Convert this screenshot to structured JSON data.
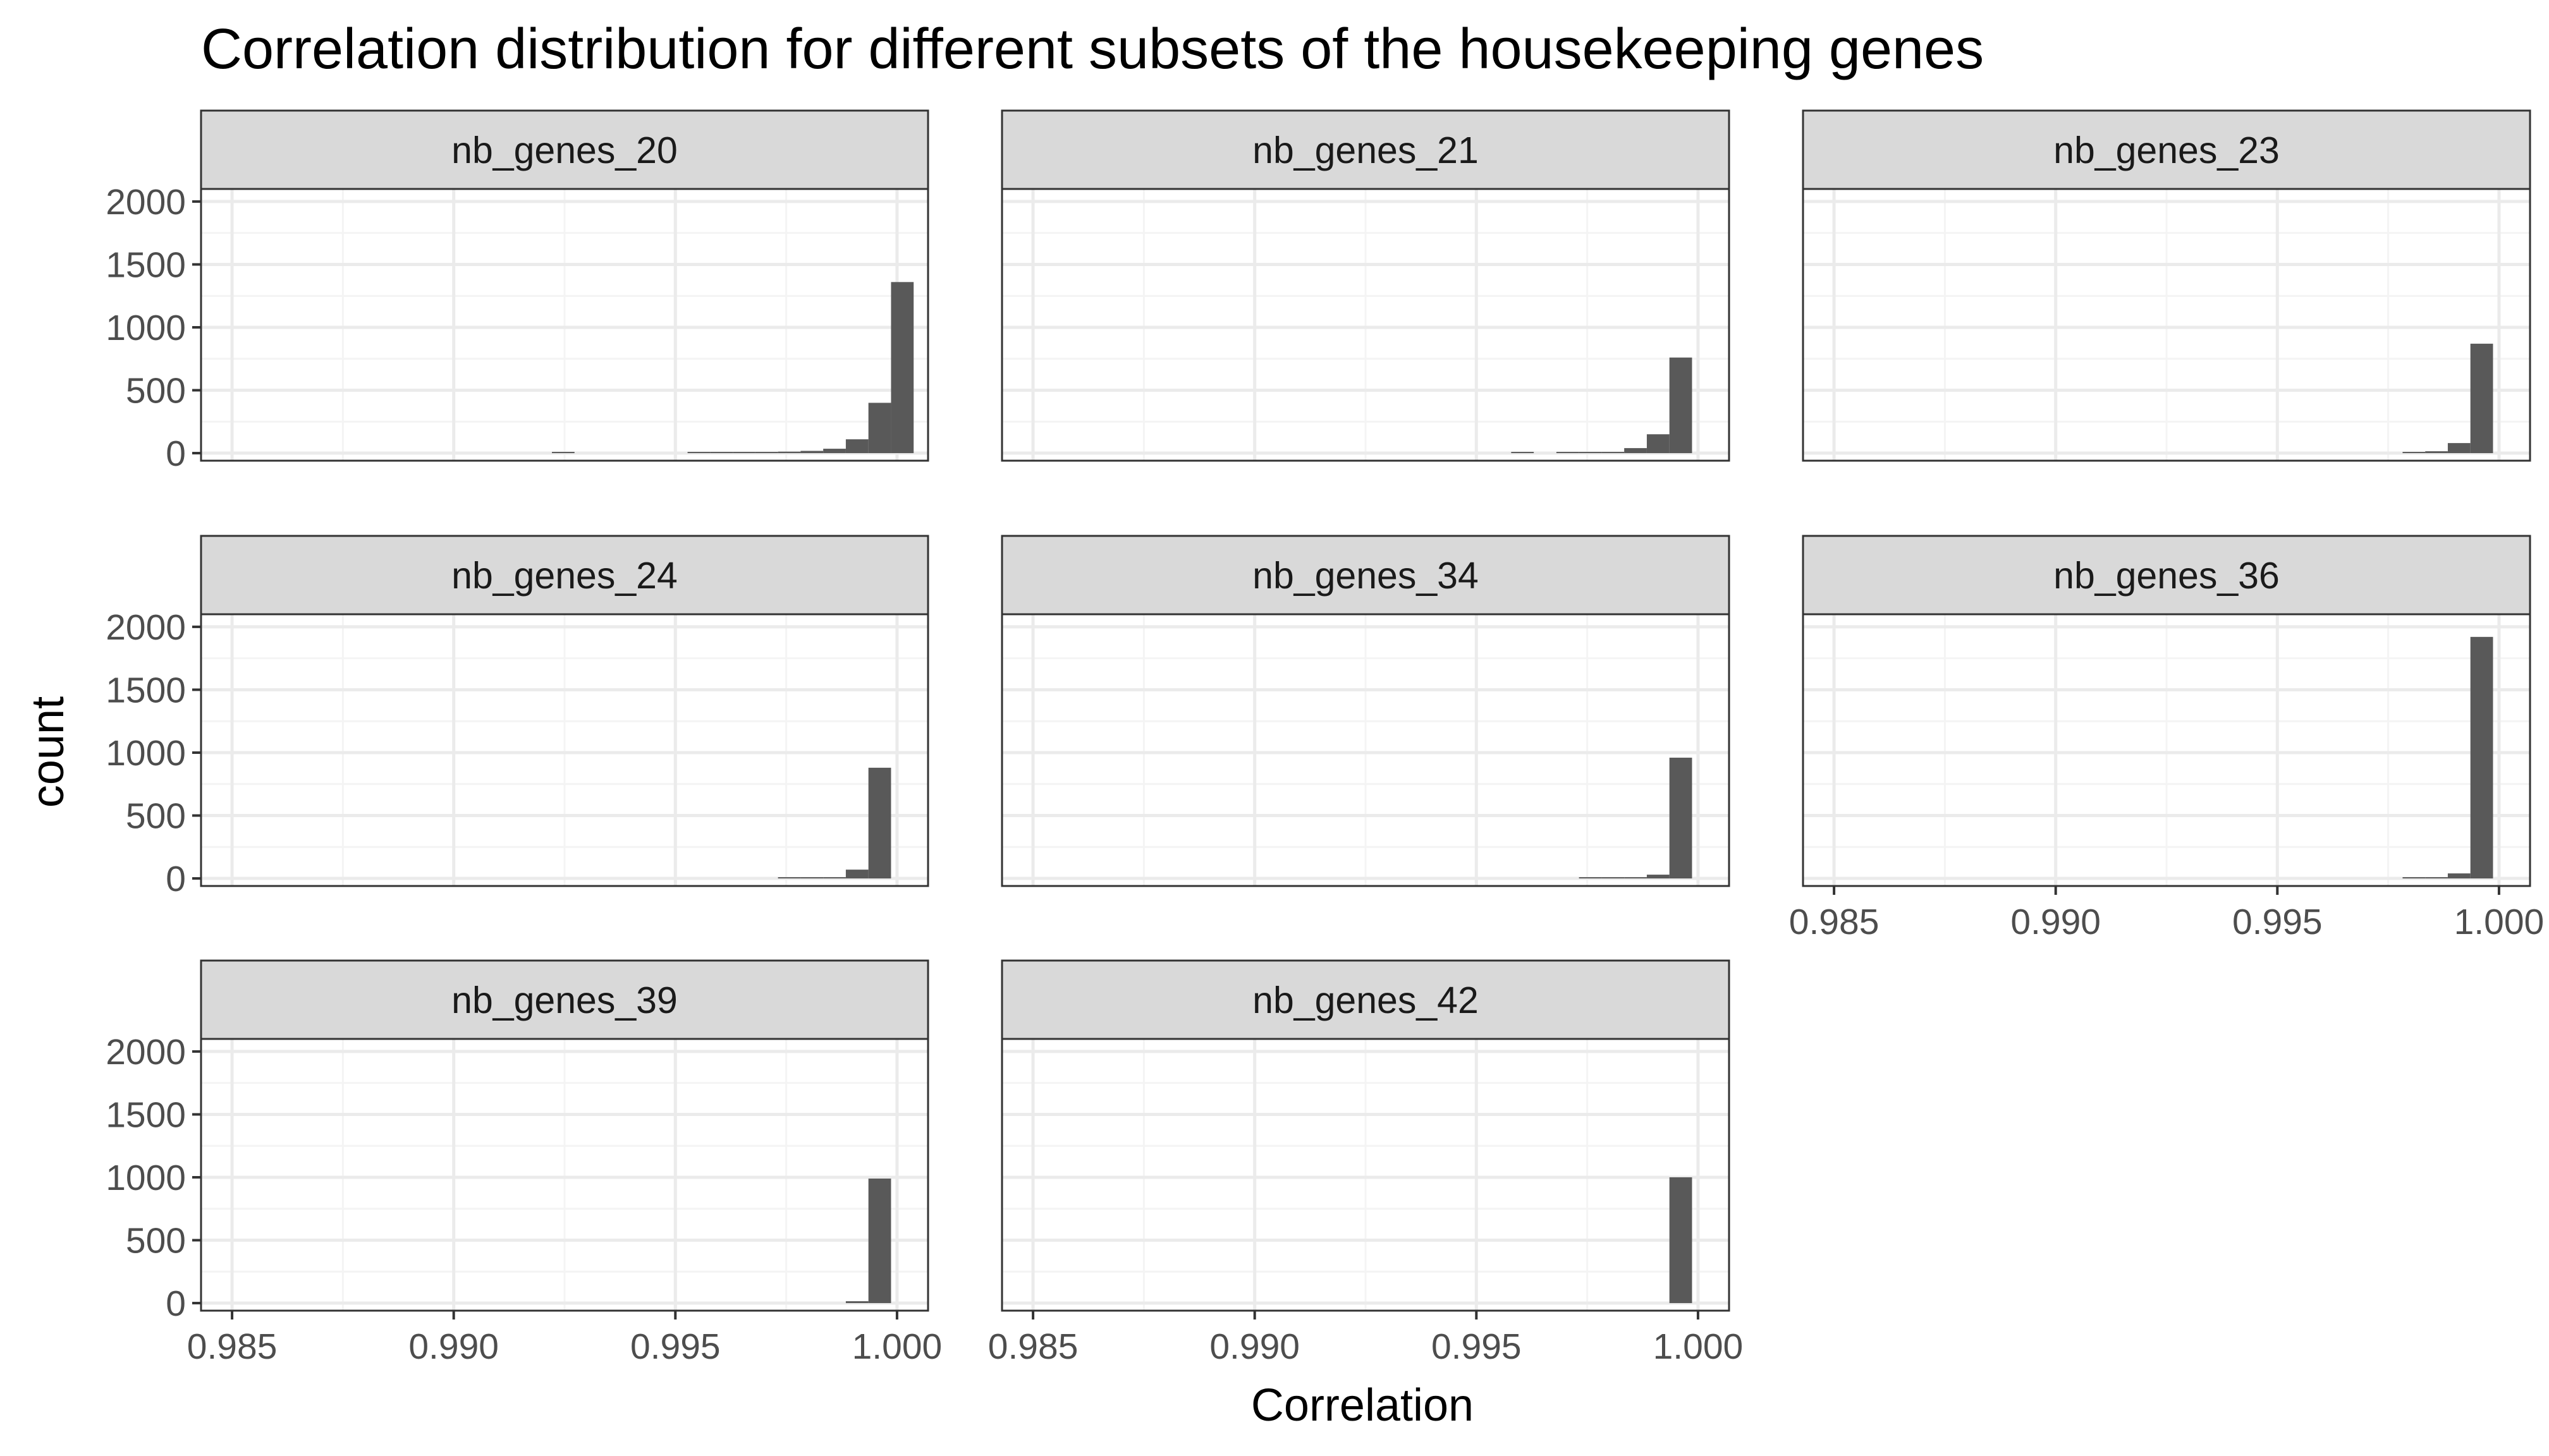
{
  "chart_data": {
    "type": "bar",
    "title": "Correlation distribution for different subsets of the housekeeping genes",
    "xlabel": "Correlation",
    "ylabel": "count",
    "xlim": [
      0.9843,
      1.0007
    ],
    "ylim": [
      -60,
      2100
    ],
    "x_ticks": [
      "0.985",
      "0.990",
      "0.995",
      "1.000"
    ],
    "x_tick_values": [
      0.985,
      0.99,
      0.995,
      1.0
    ],
    "y_ticks": [
      "0",
      "500",
      "1000",
      "1500",
      "2000"
    ],
    "y_tick_values": [
      0,
      500,
      1000,
      1500,
      2000
    ],
    "grid": true,
    "layout": {
      "columns": 3,
      "rows": 3
    },
    "panels": [
      {
        "name": "nb_genes_20",
        "bars": [
          {
            "x": 0.99247,
            "y": 4
          },
          {
            "x": 0.99553,
            "y": 3
          },
          {
            "x": 0.99604,
            "y": 4
          },
          {
            "x": 0.99655,
            "y": 5
          },
          {
            "x": 0.99706,
            "y": 8
          },
          {
            "x": 0.99757,
            "y": 12
          },
          {
            "x": 0.99808,
            "y": 18
          },
          {
            "x": 0.99859,
            "y": 35
          },
          {
            "x": 0.9991,
            "y": 110
          },
          {
            "x": 0.99961,
            "y": 400
          },
          {
            "x": 1.00012,
            "y": 1360
          }
        ]
      },
      {
        "name": "nb_genes_21",
        "bars": [
          {
            "x": 0.99604,
            "y": 3
          },
          {
            "x": 0.99706,
            "y": 4
          },
          {
            "x": 0.99757,
            "y": 5
          },
          {
            "x": 0.99808,
            "y": 10
          },
          {
            "x": 0.99859,
            "y": 40
          },
          {
            "x": 0.9991,
            "y": 150
          },
          {
            "x": 0.99961,
            "y": 760
          }
        ]
      },
      {
        "name": "nb_genes_23",
        "bars": [
          {
            "x": 0.99808,
            "y": 4
          },
          {
            "x": 0.99859,
            "y": 15
          },
          {
            "x": 0.9991,
            "y": 80
          },
          {
            "x": 0.99961,
            "y": 870
          }
        ]
      },
      {
        "name": "nb_genes_24",
        "bars": [
          {
            "x": 0.99757,
            "y": 3
          },
          {
            "x": 0.99808,
            "y": 5
          },
          {
            "x": 0.99859,
            "y": 10
          },
          {
            "x": 0.9991,
            "y": 70
          },
          {
            "x": 0.99961,
            "y": 880
          }
        ]
      },
      {
        "name": "nb_genes_34",
        "bars": [
          {
            "x": 0.99757,
            "y": 3
          },
          {
            "x": 0.99808,
            "y": 6
          },
          {
            "x": 0.99859,
            "y": 8
          },
          {
            "x": 0.9991,
            "y": 30
          },
          {
            "x": 0.99961,
            "y": 960
          }
        ]
      },
      {
        "name": "nb_genes_36",
        "bars": [
          {
            "x": 0.99808,
            "y": 5
          },
          {
            "x": 0.99859,
            "y": 10
          },
          {
            "x": 0.9991,
            "y": 40
          },
          {
            "x": 0.99961,
            "y": 1920
          }
        ]
      },
      {
        "name": "nb_genes_39",
        "bars": [
          {
            "x": 0.9991,
            "y": 15
          },
          {
            "x": 0.99961,
            "y": 990
          }
        ]
      },
      {
        "name": "nb_genes_42",
        "bars": [
          {
            "x": 0.99961,
            "y": 1000
          }
        ]
      }
    ],
    "colors": {
      "bar": "#595959",
      "strip_fill": "#d9d9d9",
      "strip_border": "#333333",
      "panel_border": "#333333",
      "grid_major": "#ebebeb",
      "grid_minor": "#f4f4f4",
      "tick_label": "#4d4d4d"
    }
  }
}
